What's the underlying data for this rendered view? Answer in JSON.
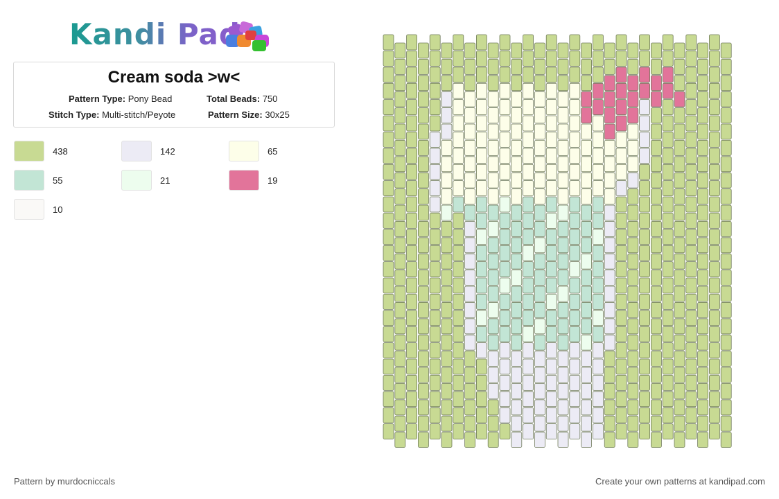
{
  "logo": {
    "text": "Kandi Pad"
  },
  "pattern": {
    "title": "Cream soda >w<",
    "pattern_type_label": "Pattern Type:",
    "pattern_type": "Pony Bead",
    "total_beads_label": "Total Beads:",
    "total_beads": "750",
    "stitch_type_label": "Stitch Type:",
    "stitch_type": "Multi-stitch/Peyote",
    "pattern_size_label": "Pattern Size:",
    "pattern_size": "30x25"
  },
  "palette": [
    {
      "color": "#c8da93",
      "count": "438"
    },
    {
      "color": "#ecebf5",
      "count": "142"
    },
    {
      "color": "#fdfee9",
      "count": "65"
    },
    {
      "color": "#c2e5d5",
      "count": "55"
    },
    {
      "color": "#edfdee",
      "count": "21"
    },
    {
      "color": "#e2749a",
      "count": "19"
    },
    {
      "color": "#faf9f7",
      "count": "10"
    }
  ],
  "footer": {
    "author": "Pattern by murdocniccals",
    "cta": "Create your own patterns at kandipad.com"
  }
}
